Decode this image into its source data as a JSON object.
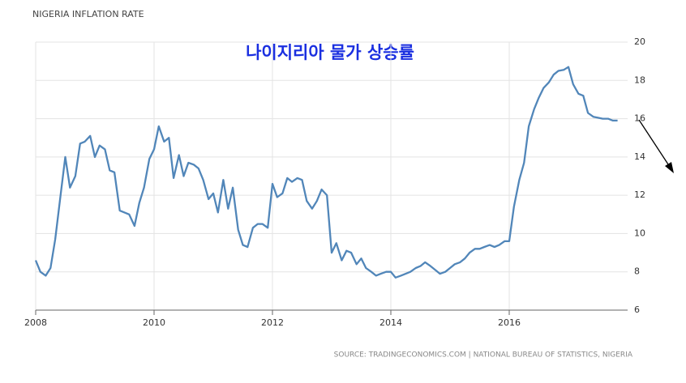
{
  "chart_data": {
    "type": "line",
    "title": "NIGERIA INFLATION RATE",
    "subtitle": "나이지리아 물가 상승률",
    "source": "SOURCE: TRADINGECONOMICS.COM | NATIONAL BUREAU OF STATISTICS, NIGERIA",
    "x": [
      2008.0,
      2008.08,
      2008.17,
      2008.25,
      2008.33,
      2008.42,
      2008.5,
      2008.58,
      2008.67,
      2008.75,
      2008.83,
      2008.92,
      2009.0,
      2009.08,
      2009.17,
      2009.25,
      2009.33,
      2009.42,
      2009.5,
      2009.58,
      2009.67,
      2009.75,
      2009.83,
      2009.92,
      2010.0,
      2010.08,
      2010.17,
      2010.25,
      2010.33,
      2010.42,
      2010.5,
      2010.58,
      2010.67,
      2010.75,
      2010.83,
      2010.92,
      2011.0,
      2011.08,
      2011.17,
      2011.25,
      2011.33,
      2011.42,
      2011.5,
      2011.58,
      2011.67,
      2011.75,
      2011.83,
      2011.92,
      2012.0,
      2012.08,
      2012.17,
      2012.25,
      2012.33,
      2012.42,
      2012.5,
      2012.58,
      2012.67,
      2012.75,
      2012.83,
      2012.92,
      2013.0,
      2013.08,
      2013.17,
      2013.25,
      2013.33,
      2013.42,
      2013.5,
      2013.58,
      2013.67,
      2013.75,
      2013.83,
      2013.92,
      2014.0,
      2014.08,
      2014.17,
      2014.25,
      2014.33,
      2014.42,
      2014.5,
      2014.58,
      2014.67,
      2014.75,
      2014.83,
      2014.92,
      2015.0,
      2015.08,
      2015.17,
      2015.25,
      2015.33,
      2015.42,
      2015.5,
      2015.58,
      2015.67,
      2015.75,
      2015.83,
      2015.92,
      2016.0,
      2016.08,
      2016.17,
      2016.25,
      2016.33,
      2016.42,
      2016.5,
      2016.58,
      2016.67,
      2016.75,
      2016.83,
      2016.92,
      2017.0,
      2017.08,
      2017.17,
      2017.25,
      2017.33,
      2017.42,
      2017.5,
      2017.58,
      2017.67,
      2017.75,
      2017.83
    ],
    "series": [
      {
        "name": "Inflation rate",
        "color": "#5186b9",
        "values": [
          8.6,
          8.0,
          7.8,
          8.2,
          9.7,
          12.0,
          14.0,
          12.4,
          13.0,
          14.7,
          14.8,
          15.1,
          14.0,
          14.6,
          14.4,
          13.3,
          13.2,
          11.2,
          11.1,
          11.0,
          10.4,
          11.6,
          12.4,
          13.9,
          14.4,
          15.6,
          14.8,
          15.0,
          12.9,
          14.1,
          13.0,
          13.7,
          13.6,
          13.4,
          12.8,
          11.8,
          12.1,
          11.1,
          12.8,
          11.3,
          12.4,
          10.2,
          9.4,
          9.3,
          10.3,
          10.5,
          10.5,
          10.3,
          12.6,
          11.9,
          12.1,
          12.9,
          12.7,
          12.9,
          12.8,
          11.7,
          11.3,
          11.7,
          12.3,
          12.0,
          9.0,
          9.5,
          8.6,
          9.1,
          9.0,
          8.4,
          8.7,
          8.2,
          8.0,
          7.8,
          7.9,
          8.0,
          8.0,
          7.7,
          7.8,
          7.9,
          8.0,
          8.2,
          8.3,
          8.5,
          8.3,
          8.1,
          7.9,
          8.0,
          8.2,
          8.4,
          8.5,
          8.7,
          9.0,
          9.2,
          9.2,
          9.3,
          9.4,
          9.3,
          9.4,
          9.6,
          9.6,
          11.4,
          12.8,
          13.7,
          15.6,
          16.5,
          17.1,
          17.6,
          17.9,
          18.3,
          18.5,
          18.55,
          18.7,
          17.8,
          17.3,
          17.2,
          16.3,
          16.1,
          16.05,
          16.0,
          16.0,
          15.9,
          15.9
        ]
      }
    ],
    "xlim": [
      2008,
      2018
    ],
    "xticks": [
      2008,
      2010,
      2012,
      2014,
      2016
    ],
    "ylim": [
      6,
      20
    ],
    "yticks": [
      6,
      8,
      10,
      12,
      14,
      16,
      18,
      20
    ],
    "grid": true
  }
}
